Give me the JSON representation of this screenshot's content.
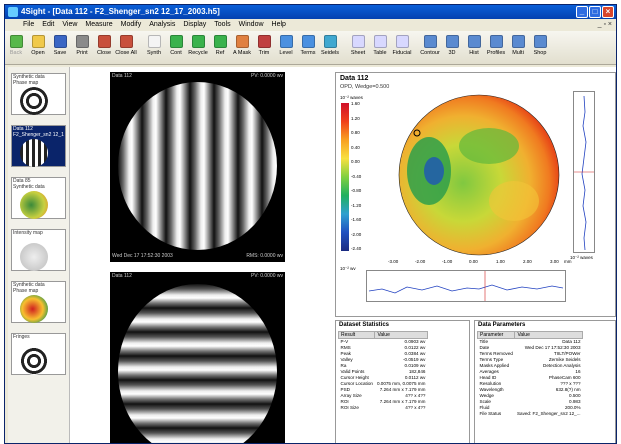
{
  "window": {
    "title": "4Sight - [Data 112 - F2_Shenger_sn2 12_17_2003.h5]",
    "controls": [
      "_",
      "□",
      "×"
    ],
    "mdi_controls": "_ ▫ ×"
  },
  "menu": [
    "File",
    "Edit",
    "View",
    "Measure",
    "Modify",
    "Analysis",
    "Display",
    "Tools",
    "Window",
    "Help"
  ],
  "toolbar": [
    {
      "label": "Back",
      "icon": "back-arrow-icon",
      "color": "#58b84a",
      "disabled": true
    },
    {
      "label": "Open",
      "icon": "open-folder-icon",
      "color": "#f0c94a"
    },
    {
      "label": "Save",
      "icon": "save-disk-icon",
      "color": "#3a66c4"
    },
    {
      "label": "Print",
      "icon": "printer-icon",
      "color": "#8a8a8a"
    },
    {
      "label": "Close",
      "icon": "close-doc-icon",
      "color": "#c8503c"
    },
    {
      "label": "Close All",
      "icon": "close-all-icon",
      "color": "#c8503c"
    },
    {
      "label": "Synth",
      "icon": "synth-icon",
      "color": "#f4f4f4"
    },
    {
      "label": "Cont",
      "icon": "cont-icon",
      "color": "#3ab24c"
    },
    {
      "label": "Recycle",
      "icon": "recycle-icon",
      "color": "#3ab24c"
    },
    {
      "label": "Ref",
      "icon": "ref-icon",
      "color": "#3ab24c"
    },
    {
      "label": "A Mask",
      "icon": "amask-icon",
      "color": "#e08040"
    },
    {
      "label": "Trim",
      "icon": "trim-scissors-icon",
      "color": "#c04040"
    },
    {
      "label": "Level",
      "icon": "level-icon",
      "color": "#4a90e0"
    },
    {
      "label": "Terms",
      "icon": "terms-icon",
      "color": "#4a90e0"
    },
    {
      "label": "Seidels",
      "icon": "seidels-icon",
      "color": "#40a8d0"
    },
    {
      "label": "Sheet",
      "icon": "sheet-icon",
      "color": "#d8d8ff"
    },
    {
      "label": "Table",
      "icon": "table-icon",
      "color": "#d8d8ff"
    },
    {
      "label": "Fiducial",
      "icon": "fiducial-icon",
      "color": "#d8d8ff"
    },
    {
      "label": "Contour",
      "icon": "contour-icon",
      "color": "#5a8ad0"
    },
    {
      "label": "3D",
      "icon": "3d-icon",
      "color": "#5a8ad0"
    },
    {
      "label": "Hist",
      "icon": "histogram-icon",
      "color": "#5a8ad0"
    },
    {
      "label": "Profiles",
      "icon": "profiles-icon",
      "color": "#5a8ad0"
    },
    {
      "label": "Multi",
      "icon": "multi-icon",
      "color": "#5a8ad0"
    },
    {
      "label": "Shop",
      "icon": "shop-icon",
      "color": "#5a8ad0"
    }
  ],
  "thumbnails": [
    {
      "caption": "Synthetic data",
      "caption2": "Phase map",
      "selected": false
    },
    {
      "caption": "Data 112",
      "caption2": "F2_Shenger_sn2 12_1",
      "selected": true
    },
    {
      "caption": "Data 85",
      "caption2": "Synthetic data",
      "selected": false
    },
    {
      "caption": "Intensity map",
      "caption2": "",
      "selected": false
    },
    {
      "caption": "Synthetic data",
      "caption2": "Phase map",
      "selected": false
    },
    {
      "caption": "Fringes",
      "caption2": "",
      "selected": false
    }
  ],
  "fringe_panels": [
    {
      "title": "Data 112",
      "right": "PV: 0.0000 wv",
      "footer_left": "Wed Dec 17 17:52:30 2003",
      "footer_right": "RMS: 0.0000 wv"
    },
    {
      "title": "Data 112",
      "right": "PV: 0.0000 wv",
      "footer_left": "",
      "footer_right": ""
    }
  ],
  "map_panel": {
    "title": "Data 112",
    "subtitle": "OPD, Wedge=0.500",
    "colorbar_unit": "10⁻² waves",
    "colorbar_ticks": [
      "1.60",
      "1.20",
      "0.80",
      "0.40",
      "0.00",
      "-0.40",
      "-0.80",
      "-1.20",
      "-1.60",
      "-2.00",
      "-2.40"
    ],
    "x_ticks": [
      "-3.00",
      "-2.00",
      "-1.00",
      "0.00",
      "1.00",
      "2.00",
      "3.00"
    ],
    "x_unit": "mm",
    "y_profile_unit": "10⁻² waves",
    "x_profile_unit": "10⁻² wv"
  },
  "dataset_statistics": {
    "title": "Dataset Statistics",
    "columns": [
      "Result",
      "Value"
    ],
    "rows": [
      [
        "P-V",
        "0.0903 wv"
      ],
      [
        "RMS",
        "0.0122 wv"
      ],
      [
        "Peak",
        "0.0384 wv"
      ],
      [
        "Valley",
        "-0.0519 wv"
      ],
      [
        "Ra",
        "0.0109 wv"
      ],
      [
        "Valid Points",
        "182,846"
      ],
      [
        "Cursor Height",
        "0.0112 wv"
      ],
      [
        "Cursor Location",
        "0.0075 mm, 0.0075 mm"
      ],
      [
        "PSD",
        "7.264 mm x 7.179 mm"
      ],
      [
        "Array Size",
        "4?? x 4??"
      ],
      [
        "ROI",
        "7.264 mm x 7.179 mm"
      ],
      [
        "ROI Size",
        "4?? x 4??"
      ]
    ]
  },
  "data_parameters": {
    "title": "Data Parameters",
    "columns": [
      "Parameter",
      "Value"
    ],
    "rows": [
      [
        "Title",
        "Data 112"
      ],
      [
        "Date",
        "Wed Dec 17 17:52:30 2003"
      ],
      [
        "Terms Removed",
        "TIILT/POWer"
      ],
      [
        "Terms Type",
        "Zernike Seidels"
      ],
      [
        "Masks Applied",
        "Detection Analysis"
      ],
      [
        "Averages",
        "16"
      ],
      [
        "Head ID",
        "PhaseCam 600"
      ],
      [
        "Resolution",
        "??? x ???"
      ],
      [
        "Wavelength",
        "632.8(?) nm"
      ],
      [
        "Wedge",
        "0.500"
      ],
      [
        "Scale",
        "0.983"
      ],
      [
        "Fluid",
        "200.0%"
      ],
      [
        "File Status",
        "Saved: F2_Shenger_sn2 12_..."
      ]
    ]
  },
  "colors": {
    "title_bar": "#0441b0",
    "toolbar_bg": "#ece9d8",
    "selected_thumb": "#0a246a"
  }
}
